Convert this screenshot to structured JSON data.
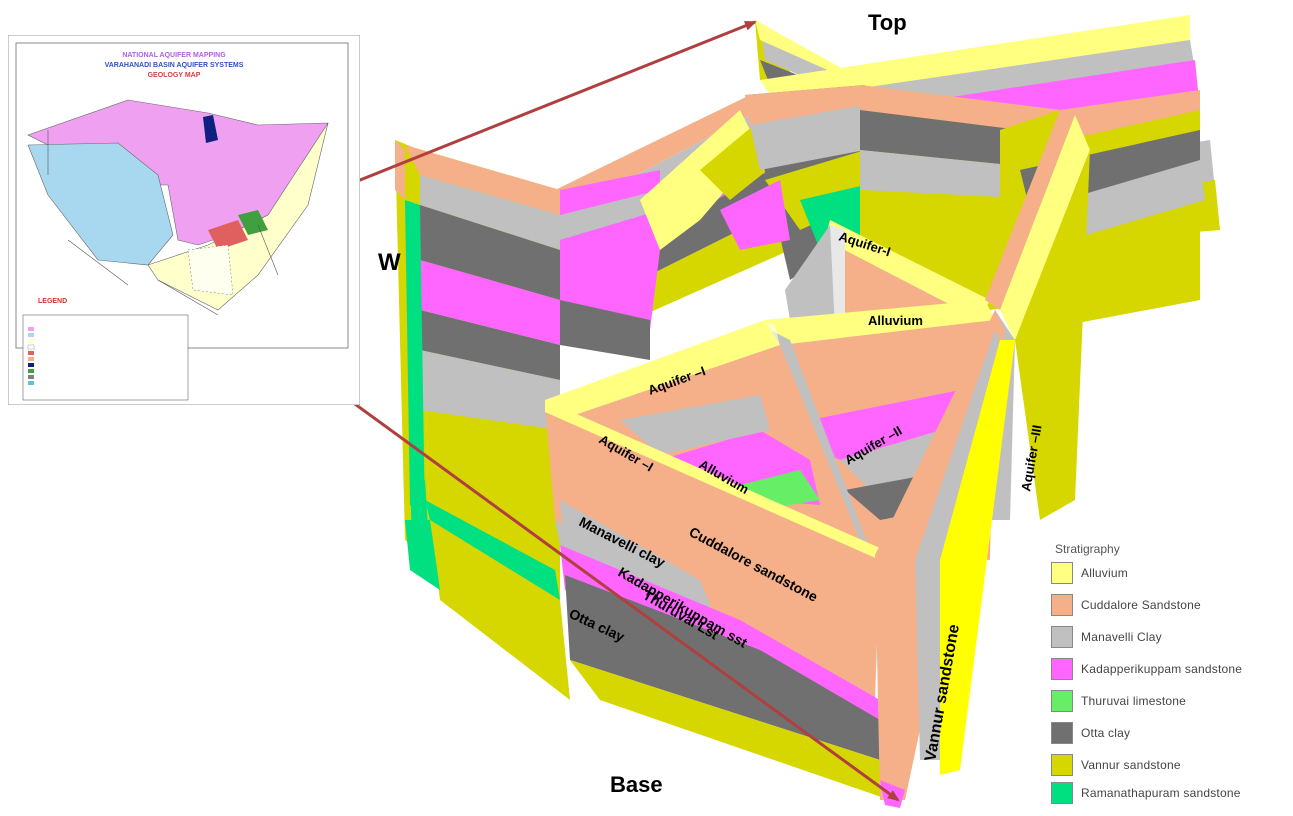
{
  "labels": {
    "top": "Top",
    "base": "Base",
    "west": "W",
    "aquifer_i_upper": "Aquifer-I",
    "alluvium_upper": "Alluvium",
    "aquifer_i_left": "Aquifer –I",
    "aquifer_ii": "Aquifer –II",
    "aquifer_iii": "Aquifer –III",
    "aquifer_i_front": "Aquifer –I",
    "alluvium_front": "Alluvium",
    "manavelli_clay": "Manavelli clay",
    "cuddalore_sandstone": "Cuddalore sandstone",
    "kadapperikuppam_sst": "Kadapperikuppam sst",
    "thuruvai_lst": "Thuruvai Lst",
    "otta_clay": "Otta clay",
    "vannur_sandstone": "Vannur sandstone"
  },
  "inset_map": {
    "line1": "NATIONAL AQUIFER MAPPING",
    "line2": "VARAHANADI BASIN AQUIFER SYSTEMS",
    "line3": "GEOLOGY MAP",
    "legend_heading": "LEGEND"
  },
  "legend": {
    "title": "Stratigraphy",
    "items": [
      {
        "label": "Alluvium",
        "color": "#ffff80"
      },
      {
        "label": "Cuddalore Sandstone",
        "color": "#f5b08a"
      },
      {
        "label": "Manavelli Clay",
        "color": "#c0c0c0"
      },
      {
        "label": "Kadapperikuppam sandstone",
        "color": "#ff66ff"
      },
      {
        "label": "Thuruvai limestone",
        "color": "#66ee66"
      },
      {
        "label": "Otta clay",
        "color": "#707070"
      },
      {
        "label": "Vannur sandstone",
        "color": "#d6d600"
      },
      {
        "label": "Ramanathapuram sandstone",
        "color": "#00e080"
      }
    ]
  },
  "colors": {
    "alluvium": "#ffff80",
    "cuddalore": "#f5b08a",
    "manavelli": "#c0c0c0",
    "kadapperikuppam": "#ff66ff",
    "thuruvai": "#66ee66",
    "otta": "#707070",
    "vannur": "#d6d600",
    "ramanathapuram": "#00e080",
    "arrow": "#b04040"
  }
}
